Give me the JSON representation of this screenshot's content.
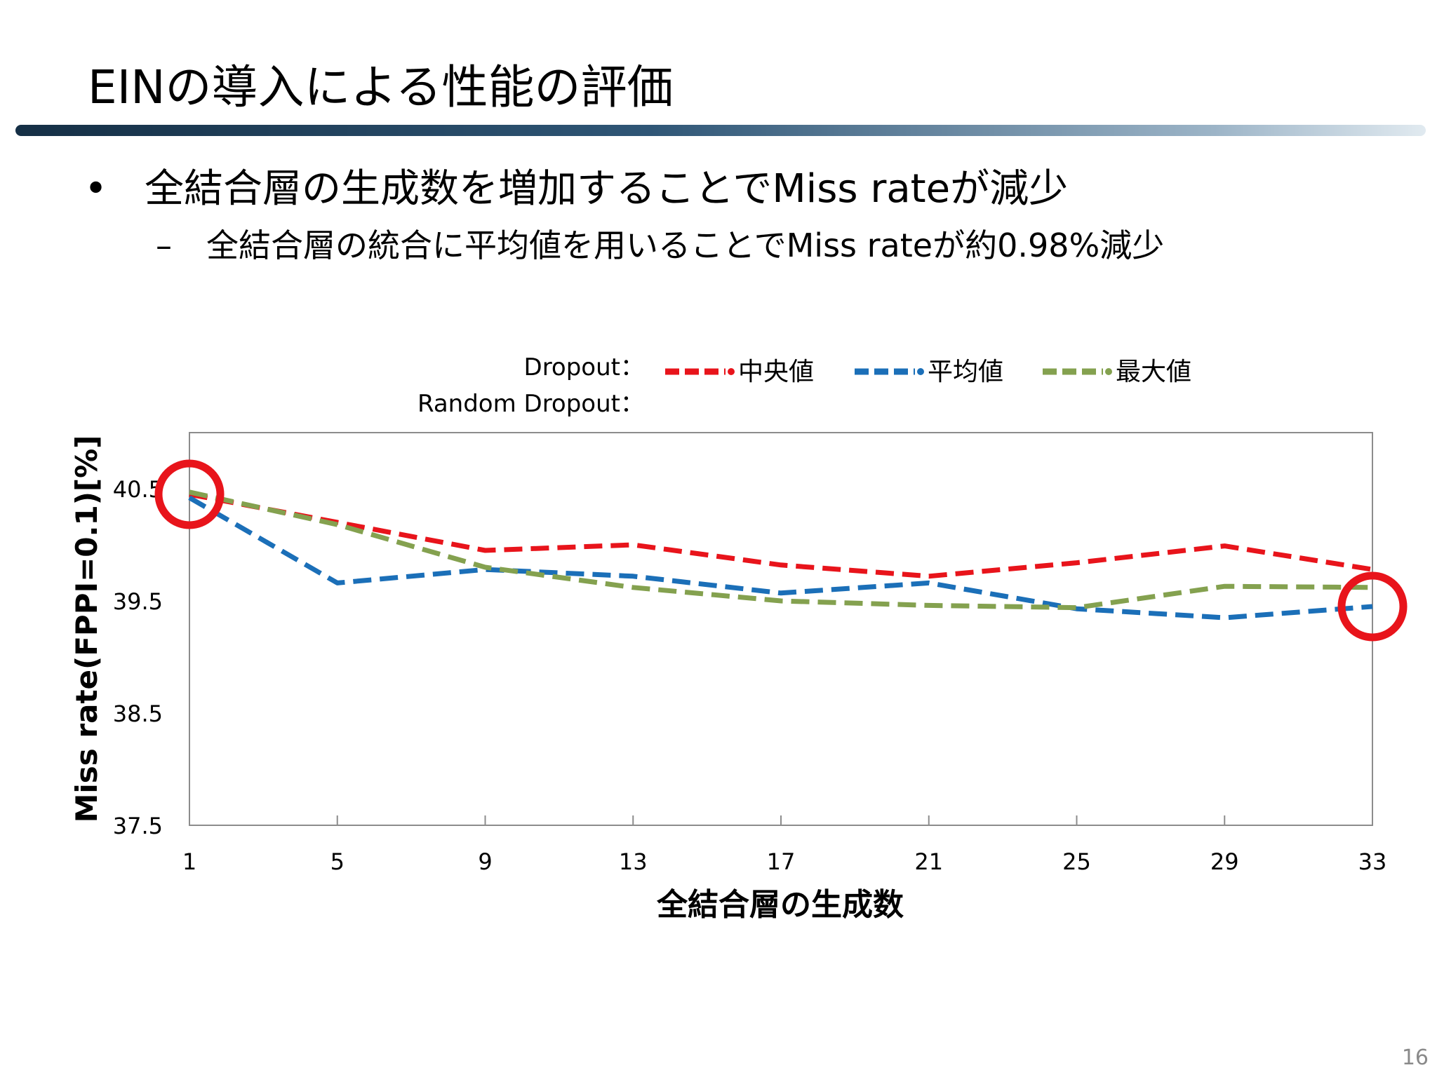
{
  "slide": {
    "title": "EINの導入による性能の評価",
    "bullet_marker": "•",
    "bullet1": "全結合層の生成数を増加することでMiss rateが減少",
    "sub_marker": "–",
    "bullet2": "全結合層の統合に平均値を用いることでMiss rateが約0.98%減少",
    "page_number": "16"
  },
  "legend": {
    "row1_label": "Dropout：",
    "row2_label": "Random Dropout：",
    "items": [
      {
        "label": "中央値",
        "color": "#e8141b"
      },
      {
        "label": "平均値",
        "color": "#1b6fb8"
      },
      {
        "label": "最大値",
        "color": "#84a14f"
      }
    ]
  },
  "chart_data": {
    "type": "line",
    "xlabel": "全結合層の生成数",
    "ylabel": "Miss rate(FPPI=0.1)[%]",
    "x": [
      1,
      5,
      9,
      13,
      17,
      21,
      25,
      29,
      33
    ],
    "x_ticks": [
      "1",
      "5",
      "9",
      "13",
      "17",
      "21",
      "25",
      "29",
      "33"
    ],
    "y_ticks": [
      "37.5",
      "38.5",
      "39.5",
      "40.5"
    ],
    "ylim": [
      37.5,
      41.0
    ],
    "line_style": "dashed",
    "series": [
      {
        "name": "中央値",
        "color": "#e8141b",
        "values": [
          40.45,
          40.2,
          39.95,
          40.0,
          39.82,
          39.72,
          39.84,
          39.99,
          39.78
        ]
      },
      {
        "name": "平均値",
        "color": "#1b6fb8",
        "values": [
          40.42,
          39.66,
          39.78,
          39.72,
          39.57,
          39.66,
          39.43,
          39.35,
          39.45
        ]
      },
      {
        "name": "最大値",
        "color": "#84a14f",
        "values": [
          40.47,
          40.18,
          39.8,
          39.62,
          39.5,
          39.46,
          39.44,
          39.63,
          39.62
        ]
      }
    ],
    "highlights": [
      {
        "x": 1,
        "y": 40.45,
        "color": "#e8141b"
      },
      {
        "x": 33,
        "y": 39.45,
        "color": "#e8141b"
      }
    ]
  }
}
